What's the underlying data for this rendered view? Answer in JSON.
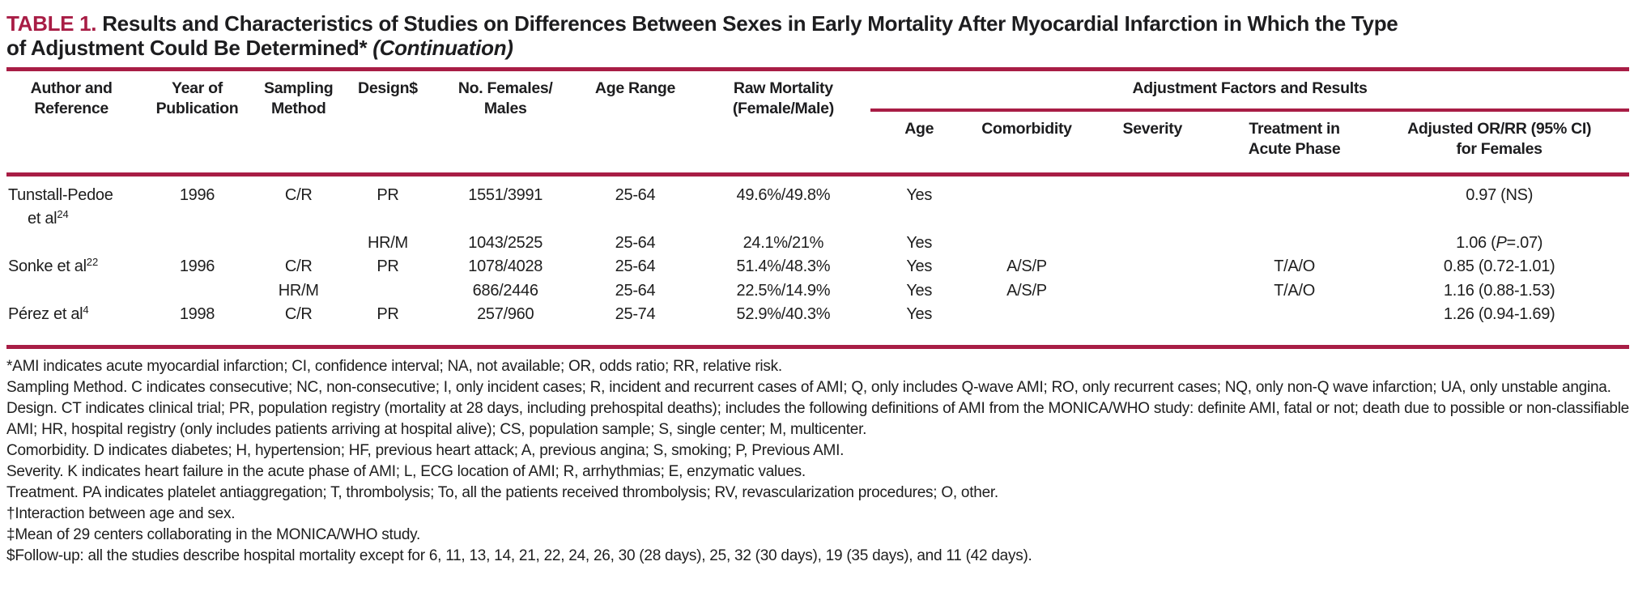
{
  "colors": {
    "accent": "#A81D45"
  },
  "title": {
    "label": "TABLE 1.",
    "line1": "Results and Characteristics of Studies on Differences Between Sexes in Early Mortality After Myocardial Infarction in Which the Type",
    "line2": "of Adjustment Could Be Determined*",
    "continuation": "(Continuation)"
  },
  "table": {
    "headers": {
      "author": {
        "l1": "Author and",
        "l2": "Reference"
      },
      "year": {
        "l1": "Year of",
        "l2": "Publication"
      },
      "sampling": {
        "l1": "Sampling",
        "l2": "Method"
      },
      "design": {
        "l1": "Design$",
        "l2": ""
      },
      "females": {
        "l1": "No. Females/",
        "l2": "Males"
      },
      "age_range": {
        "l1": "Age Range",
        "l2": ""
      },
      "raw": {
        "l1": "Raw Mortality",
        "l2": "(Female/Male)"
      },
      "group": "Adjustment Factors and Results",
      "sub": {
        "age": {
          "l1": "Age",
          "l2": ""
        },
        "comorbidity": {
          "l1": "Comorbidity",
          "l2": ""
        },
        "severity": {
          "l1": "Severity",
          "l2": ""
        },
        "treatment": {
          "l1": "Treatment in",
          "l2": "Acute Phase"
        },
        "adjusted": {
          "l1": "Adjusted OR/RR (95% CI)",
          "l2": "for Females"
        }
      }
    },
    "rows": [
      {
        "author_l1": "Tunstall-Pedoe",
        "author_l2": "et al",
        "author_sup": "24",
        "year": "1996",
        "sampling": "C/R",
        "design": "PR",
        "females": "1551/3991",
        "age_range": "25-64",
        "raw": "49.6%/49.8%",
        "age": "Yes",
        "comorbidity": "",
        "severity": "",
        "treatment": "",
        "adjusted": "0.97 (NS)"
      },
      {
        "author": "",
        "author_sup": "",
        "year": "",
        "sampling": "",
        "design": "HR/M",
        "females": "1043/2525",
        "age_range": "25-64",
        "raw": "24.1%/21%",
        "age": "Yes",
        "comorbidity": "",
        "severity": "",
        "treatment": "",
        "adjusted_pre": "1.06 (",
        "adjusted_italic": "P",
        "adjusted_post": "=.07)"
      },
      {
        "author": "Sonke et al",
        "author_sup": "22",
        "year": "1996",
        "sampling": "C/R",
        "design": "PR",
        "females": "1078/4028",
        "age_range": "25-64",
        "raw": "51.4%/48.3%",
        "age": "Yes",
        "comorbidity": "A/S/P",
        "severity": "",
        "treatment": "T/A/O",
        "adjusted": "0.85 (0.72-1.01)"
      },
      {
        "author": "",
        "author_sup": "",
        "year": "",
        "sampling": "HR/M",
        "design": "",
        "females": "686/2446",
        "age_range": "25-64",
        "raw": "22.5%/14.9%",
        "age": "Yes",
        "comorbidity": "A/S/P",
        "severity": "",
        "treatment": "T/A/O",
        "adjusted": "1.16 (0.88-1.53)"
      },
      {
        "author": "Pérez et al",
        "author_sup": "4",
        "year": "1998",
        "sampling": "C/R",
        "design": "PR",
        "females": "257/960",
        "age_range": "25-74",
        "raw": "52.9%/40.3%",
        "age": "Yes",
        "comorbidity": "",
        "severity": "",
        "treatment": "",
        "adjusted": "1.26 (0.94-1.69)"
      }
    ]
  },
  "footnotes": [
    "*AMI indicates acute myocardial infarction; CI, confidence interval; NA, not available; OR, odds ratio; RR, relative risk.",
    "Sampling Method. C indicates consecutive; NC, non-consecutive; I, only incident cases; R, incident and recurrent cases of AMI; Q, only includes Q-wave AMI; RO, only recurrent cases; NQ, only non-Q wave infarction; UA, only unstable angina.",
    "Design. CT indicates clinical trial; PR, population registry (mortality at 28 days, including prehospital deaths); includes the following definitions of AMI from the MONICA/WHO study: definite AMI, fatal or not; death due to possible or non-classifiable AMI; HR, hospital registry (only includes patients arriving at hospital alive); CS, population sample; S, single center; M, multicenter.",
    "Comorbidity. D indicates diabetes; H, hypertension; HF, previous heart attack; A, previous angina; S, smoking; P, Previous AMI.",
    "Severity. K indicates heart failure in the acute phase of AMI; L, ECG location of AMI; R, arrhythmias; E, enzymatic values.",
    "Treatment. PA indicates platelet antiaggregation; T, thrombolysis; To, all the patients received thrombolysis; RV, revascularization procedures; O, other.",
    "†Interaction between age and sex.",
    "‡Mean of 29 centers collaborating in the MONICA/WHO study.",
    "$Follow-up: all the studies describe hospital mortality except for 6, 11, 13, 14, 21, 22, 24, 26, 30 (28 days), 25, 32 (30 days), 19 (35 days), and 11 (42 days)."
  ]
}
